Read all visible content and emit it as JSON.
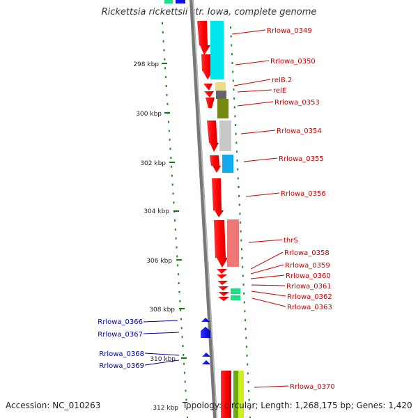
{
  "title": "Rickettsia rickettsii str. Iowa, complete genome",
  "footer": {
    "accession": "Accession: NC_010263",
    "summary": "Topology: circular; Length: 1,268,175 bp; Genes: 1,420"
  },
  "ticks": [
    "298 kbp",
    "300 kbp",
    "302 kbp",
    "304 kbp",
    "306 kbp",
    "308 kbp",
    "310 kbp",
    "312 kbp"
  ],
  "genes_forward": [
    "Rrlowa_0349",
    "Rrlowa_0350",
    "relB.2",
    "relE",
    "Rrlowa_0353",
    "Rrlowa_0354",
    "Rrlowa_0355",
    "Rrlowa_0356",
    "thrS",
    "Rrlowa_0358",
    "Rrlowa_0359",
    "Rrlowa_0360",
    "Rrlowa_0361",
    "Rrlowa_0362",
    "Rrlowa_0363",
    "Rrlowa_0370"
  ],
  "genes_reverse": [
    "Rrlowa_0366",
    "Rrlowa_0367",
    "Rrlowa_0368",
    "Rrlowa_0369"
  ],
  "colors": {
    "forward_gene": "#ff0000",
    "reverse_gene": "#0000ee",
    "forward_label": "#cc0000",
    "reverse_label": "#0000aa",
    "backbone": "#888888",
    "tick": "#117711"
  }
}
